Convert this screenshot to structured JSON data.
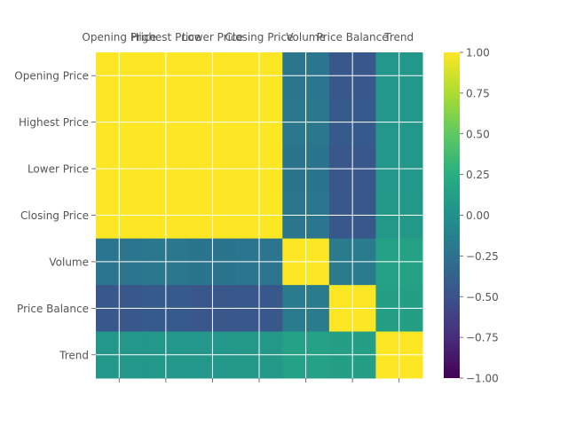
{
  "chart_data": {
    "type": "heatmap",
    "title": "",
    "xlabel": "",
    "ylabel": "",
    "x_tick_position": "top",
    "categories": [
      "Opening Price",
      "Highest Price",
      "Lower Price",
      "Closing Price",
      "Volume",
      "Price Balance",
      "Trend"
    ],
    "matrix": [
      [
        1.0,
        1.0,
        1.0,
        1.0,
        -0.22,
        -0.45,
        0.05
      ],
      [
        1.0,
        1.0,
        1.0,
        1.0,
        -0.21,
        -0.44,
        0.05
      ],
      [
        1.0,
        1.0,
        1.0,
        1.0,
        -0.23,
        -0.46,
        0.05
      ],
      [
        1.0,
        1.0,
        1.0,
        1.0,
        -0.22,
        -0.45,
        0.06
      ],
      [
        -0.22,
        -0.21,
        -0.23,
        -0.22,
        1.0,
        -0.18,
        0.15
      ],
      [
        -0.45,
        -0.44,
        -0.46,
        -0.45,
        -0.18,
        1.0,
        0.12
      ],
      [
        0.05,
        0.05,
        0.05,
        0.06,
        0.15,
        0.12,
        1.0
      ]
    ],
    "colormap": "viridis",
    "vmin": -1.0,
    "vmax": 1.0,
    "grid": true,
    "colorbar": {
      "ticks": [
        "1.00",
        "0.75",
        "0.50",
        "0.25",
        "0.00",
        "−0.25",
        "−0.50",
        "−0.75",
        "−1.00"
      ],
      "tick_values": [
        1.0,
        0.75,
        0.5,
        0.25,
        0.0,
        -0.25,
        -0.5,
        -0.75,
        -1.0
      ]
    }
  }
}
